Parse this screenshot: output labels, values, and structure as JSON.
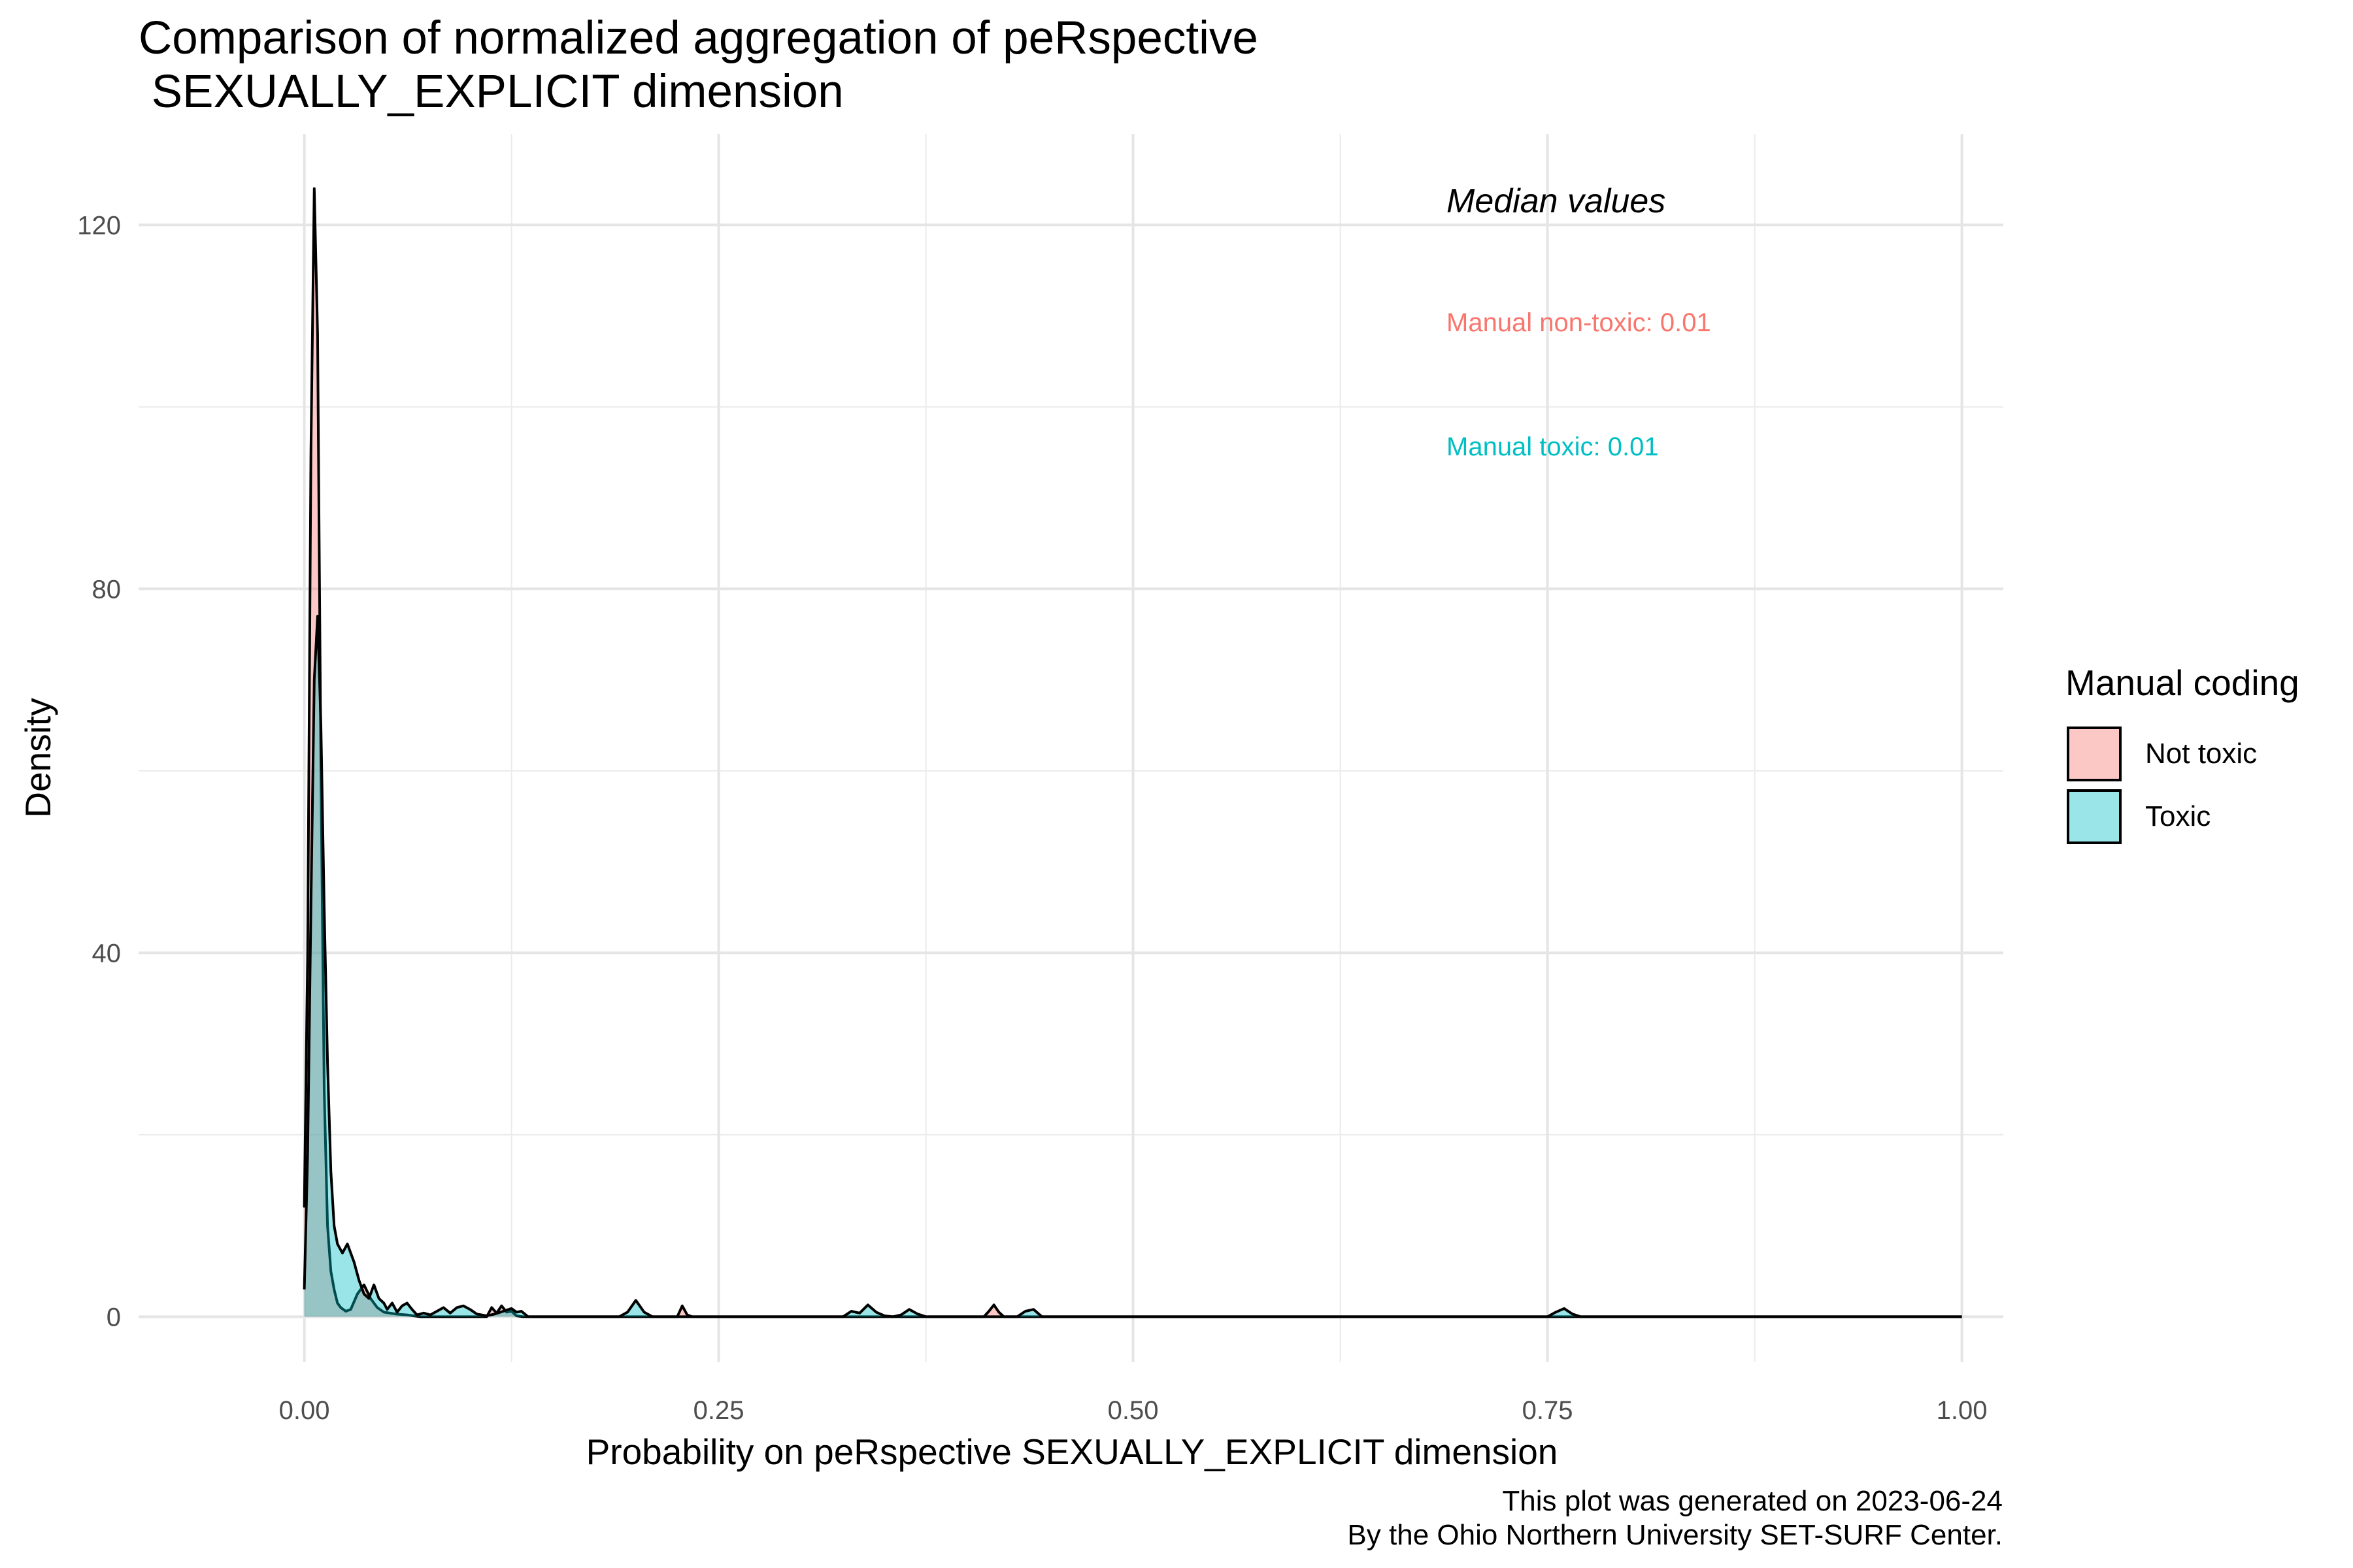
{
  "title": "Comparison of normalized aggregation of peRspective\n SEXUALLY_EXPLICIT dimension",
  "caption_line1": "This plot was generated on 2023-06-24",
  "caption_line2": "By the Ohio Northern University SET-SURF Center.",
  "annotation": {
    "heading": "Median values",
    "not_toxic": "Manual non-toxic: 0.01",
    "toxic": "Manual toxic: 0.01"
  },
  "legend": {
    "title": "Manual coding",
    "items": [
      {
        "label": "Not toxic",
        "color": "#F8766D"
      },
      {
        "label": "Toxic",
        "color": "#00BFC4"
      }
    ]
  },
  "chart_data": {
    "type": "area",
    "xlabel": "Probability on peRspective SEXUALLY_EXPLICIT dimension",
    "ylabel": "Density",
    "xlim": [
      -0.1,
      1.025
    ],
    "ylim": [
      -5,
      130
    ],
    "xticks": [
      0.0,
      0.25,
      0.5,
      0.75,
      1.0
    ],
    "xtick_labels": [
      "0.00",
      "0.25",
      "0.50",
      "0.75",
      "1.00"
    ],
    "yticks": [
      0,
      40,
      80,
      120
    ],
    "ytick_labels": [
      "0",
      "40",
      "80",
      "120"
    ],
    "grid": true,
    "legend_position": "right",
    "series": [
      {
        "name": "Not toxic",
        "color": "#F8766D",
        "x": [
          0.0,
          0.002,
          0.004,
          0.006,
          0.008,
          0.01,
          0.012,
          0.014,
          0.016,
          0.018,
          0.02,
          0.022,
          0.025,
          0.028,
          0.032,
          0.036,
          0.04,
          0.044,
          0.048,
          0.055,
          0.062,
          0.07,
          0.11,
          0.113,
          0.116,
          0.119,
          0.122,
          0.125,
          0.128,
          0.132,
          0.225,
          0.228,
          0.231,
          0.234,
          0.41,
          0.413,
          0.416,
          0.419,
          0.422,
          1.0
        ],
        "y": [
          12,
          40,
          95,
          124,
          108,
          60,
          25,
          10,
          5,
          3,
          1.5,
          1,
          0.6,
          0.8,
          2.5,
          3.5,
          2,
          1,
          0.5,
          0.3,
          0.2,
          0,
          0,
          1,
          0.4,
          1.2,
          0.5,
          0.6,
          0.1,
          0,
          0,
          1.2,
          0.2,
          0,
          0,
          0.6,
          1.3,
          0.5,
          0,
          0
        ]
      },
      {
        "name": "Toxic",
        "color": "#00BFC4",
        "x": [
          0.0,
          0.002,
          0.004,
          0.006,
          0.008,
          0.01,
          0.012,
          0.014,
          0.016,
          0.018,
          0.02,
          0.023,
          0.026,
          0.03,
          0.033,
          0.036,
          0.039,
          0.042,
          0.045,
          0.048,
          0.05,
          0.053,
          0.056,
          0.059,
          0.062,
          0.065,
          0.068,
          0.072,
          0.076,
          0.08,
          0.084,
          0.088,
          0.092,
          0.096,
          0.1,
          0.104,
          0.11,
          0.115,
          0.12,
          0.125,
          0.128,
          0.131,
          0.135,
          0.19,
          0.195,
          0.2,
          0.205,
          0.21,
          0.325,
          0.33,
          0.335,
          0.34,
          0.345,
          0.35,
          0.355,
          0.36,
          0.365,
          0.37,
          0.375,
          0.43,
          0.435,
          0.44,
          0.445,
          0.75,
          0.755,
          0.76,
          0.765,
          0.77,
          1.0
        ],
        "y": [
          3,
          18,
          45,
          70,
          77,
          65,
          45,
          28,
          16,
          10,
          8,
          7,
          8,
          6,
          4,
          2.5,
          2,
          3.5,
          2,
          1.5,
          0.8,
          1.5,
          0.5,
          1.2,
          1.5,
          0.8,
          0.2,
          0.4,
          0.2,
          0.6,
          1,
          0.4,
          1,
          1.2,
          0.8,
          0.3,
          0.1,
          0.3,
          0.6,
          0.9,
          0.5,
          0.6,
          0,
          0,
          0.5,
          1.8,
          0.5,
          0,
          0,
          0.6,
          0.4,
          1.3,
          0.5,
          0.1,
          0,
          0.2,
          0.8,
          0.3,
          0,
          0,
          0.6,
          0.8,
          0,
          0,
          0.5,
          0.9,
          0.3,
          0,
          0
        ]
      }
    ]
  }
}
